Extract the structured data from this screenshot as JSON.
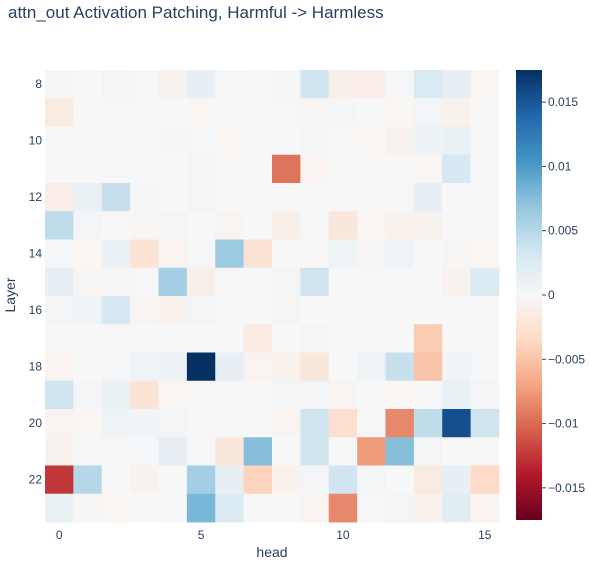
{
  "chart_data": {
    "type": "heatmap",
    "title": "attn_out Activation Patching, Harmful -> Harmless",
    "xlabel": "head",
    "ylabel": "Layer",
    "x_values": [
      0,
      1,
      2,
      3,
      4,
      5,
      6,
      7,
      8,
      9,
      10,
      11,
      12,
      13,
      14,
      15
    ],
    "y_values": [
      8,
      9,
      10,
      11,
      12,
      13,
      14,
      15,
      16,
      17,
      18,
      19,
      20,
      21,
      22,
      23
    ],
    "x_tick_labels": [
      "0",
      "5",
      "10",
      "15"
    ],
    "x_tick_values": [
      0,
      5,
      10,
      15
    ],
    "y_tick_labels": [
      "8",
      "10",
      "12",
      "14",
      "16",
      "18",
      "20",
      "22"
    ],
    "y_tick_values": [
      8,
      10,
      12,
      14,
      16,
      18,
      20,
      22
    ],
    "colorscale": "RdBu",
    "zmin": -0.0175,
    "zmax": 0.0175,
    "colorbar_tick_labels": [
      "0.015",
      "0.01",
      "0.005",
      "0",
      "−0.005",
      "−0.01",
      "−0.015"
    ],
    "colorbar_tick_values": [
      0.015,
      0.01,
      0.005,
      0,
      -0.005,
      -0.01,
      -0.015
    ],
    "z": [
      [
        0.0003,
        0,
        0.0005,
        0.0002,
        -0.0006,
        0.0015,
        0.0002,
        0,
        0.0003,
        0.0035,
        -0.001,
        -0.0012,
        0.0002,
        0.0028,
        0.0015,
        -0.0003
      ],
      [
        -0.0015,
        0,
        0.0002,
        0.0001,
        0,
        -0.0003,
        0,
        0,
        0.0001,
        -0.0002,
        0.0003,
        0,
        -0.0003,
        0.0005,
        -0.0008,
        0
      ],
      [
        0,
        0,
        0.0001,
        0,
        -0.0002,
        0.0002,
        -0.0003,
        0,
        0,
        0.0004,
        0,
        -0.0003,
        -0.0006,
        0.001,
        0.0012,
        0
      ],
      [
        0,
        0,
        0,
        0,
        0,
        0.0005,
        0,
        0,
        -0.0095,
        -0.0005,
        0,
        0,
        0,
        -0.0003,
        0.003,
        0
      ],
      [
        -0.0012,
        0.0012,
        0.004,
        0.0003,
        0,
        0.0005,
        0,
        0,
        0,
        0,
        0,
        0,
        0.0001,
        0.0015,
        0,
        0
      ],
      [
        0.0045,
        0.0005,
        0,
        -0.0002,
        -0.0002,
        0,
        -0.0004,
        0,
        -0.001,
        0.0002,
        -0.002,
        -0.0003,
        -0.0008,
        -0.0006,
        0,
        0
      ],
      [
        0.0002,
        -0.0003,
        0.0012,
        -0.0025,
        -0.0005,
        0.0002,
        0.0065,
        -0.0025,
        0,
        0,
        0.0008,
        -0.0002,
        0.0008,
        0,
        -0.0002,
        -0.0003
      ],
      [
        0.0015,
        -0.0002,
        -0.0002,
        0.0001,
        0.006,
        -0.001,
        0.0001,
        0,
        0.0005,
        0.0035,
        0,
        0.0001,
        0,
        0,
        -0.0006,
        0.0025
      ],
      [
        0.0005,
        0.0008,
        0.003,
        -0.0004,
        -0.0008,
        0.0005,
        0,
        0,
        -0.0002,
        0,
        0.0001,
        0,
        0,
        0,
        0,
        0
      ],
      [
        0.0002,
        0,
        0,
        0,
        0,
        0,
        0,
        -0.0015,
        0,
        0.0003,
        0,
        0.0002,
        0,
        -0.0045,
        0,
        0
      ],
      [
        -0.0005,
        0,
        0.0002,
        0.0008,
        0.001,
        0.0175,
        0.0015,
        -0.0005,
        -0.0008,
        -0.002,
        0,
        0.0008,
        0.004,
        -0.005,
        0.0006,
        0.0002
      ],
      [
        0.0035,
        0.0003,
        0.0012,
        -0.0025,
        -0.0003,
        0.0001,
        0,
        0,
        0.0005,
        0.0005,
        -0.0005,
        0,
        -0.0003,
        0,
        0.0012,
        0.0005
      ],
      [
        -0.0005,
        -0.0003,
        0.0008,
        0.0006,
        0.0005,
        0.0001,
        0.0001,
        0,
        -0.0005,
        0.0035,
        -0.003,
        -0.0001,
        -0.0085,
        0.0045,
        0.0155,
        0.0035
      ],
      [
        -0.0006,
        0.0002,
        0,
        0.0002,
        0.0015,
        0.0002,
        -0.002,
        0.0075,
        0,
        0.0035,
        0.0002,
        -0.0075,
        0.0075,
        0.0005,
        0,
        0
      ],
      [
        -0.0125,
        0.005,
        0,
        -0.0008,
        0,
        0.006,
        0.0015,
        -0.004,
        -0.0008,
        0.0005,
        0.0035,
        0.0005,
        0,
        -0.0015,
        0.0015,
        -0.0035
      ],
      [
        0.0012,
        -0.0002,
        -0.0003,
        0,
        0.0002,
        0.008,
        0.0025,
        0,
        0,
        -0.0005,
        -0.0085,
        0.0001,
        0.0005,
        -0.0008,
        0.002,
        -0.0005
      ]
    ]
  }
}
